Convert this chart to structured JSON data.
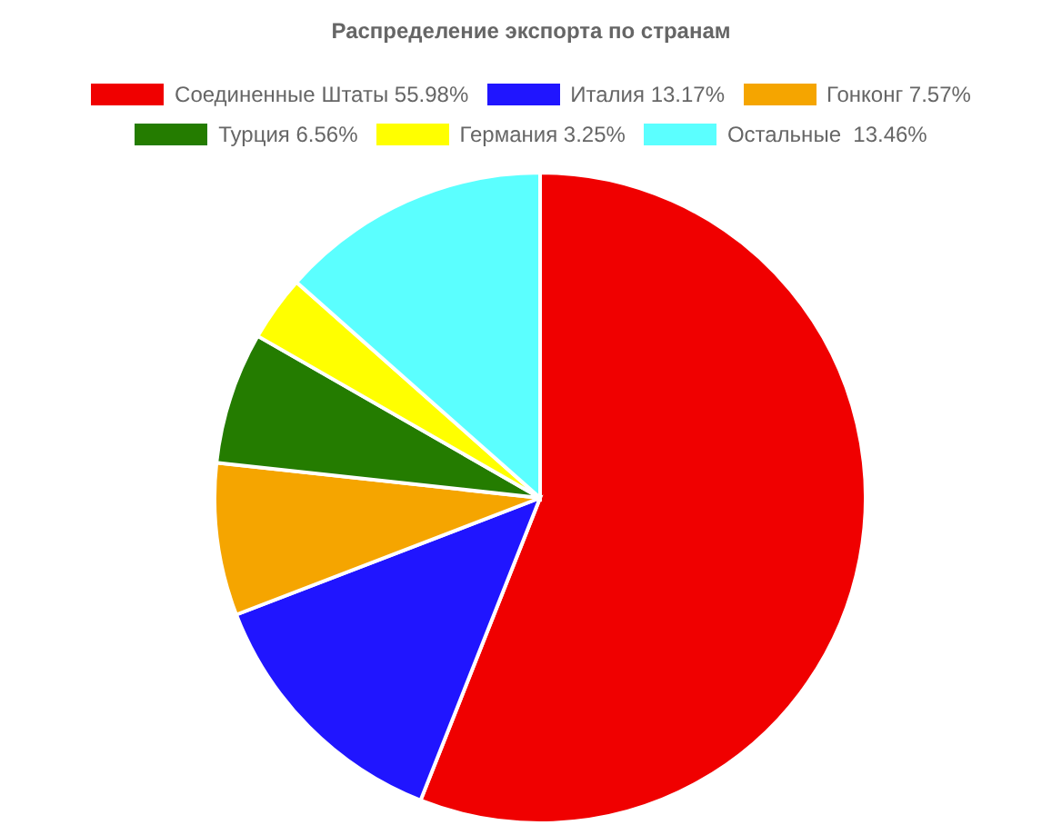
{
  "chart_data": {
    "type": "pie",
    "title": "Распределение экспорта по странам",
    "categories": [
      "Соединенные Штаты 55.98%",
      "Италия 13.17%",
      "Гонконг 7.57%",
      "Турция 6.56%",
      "Германия 3.25%",
      "Остальные  13.46%"
    ],
    "values": [
      55.98,
      13.17,
      7.57,
      6.56,
      3.25,
      13.46
    ],
    "colors": [
      "#f00000",
      "#2015ff",
      "#f5a500",
      "#247c00",
      "#ffff00",
      "#5bffff"
    ],
    "legend": "top"
  }
}
